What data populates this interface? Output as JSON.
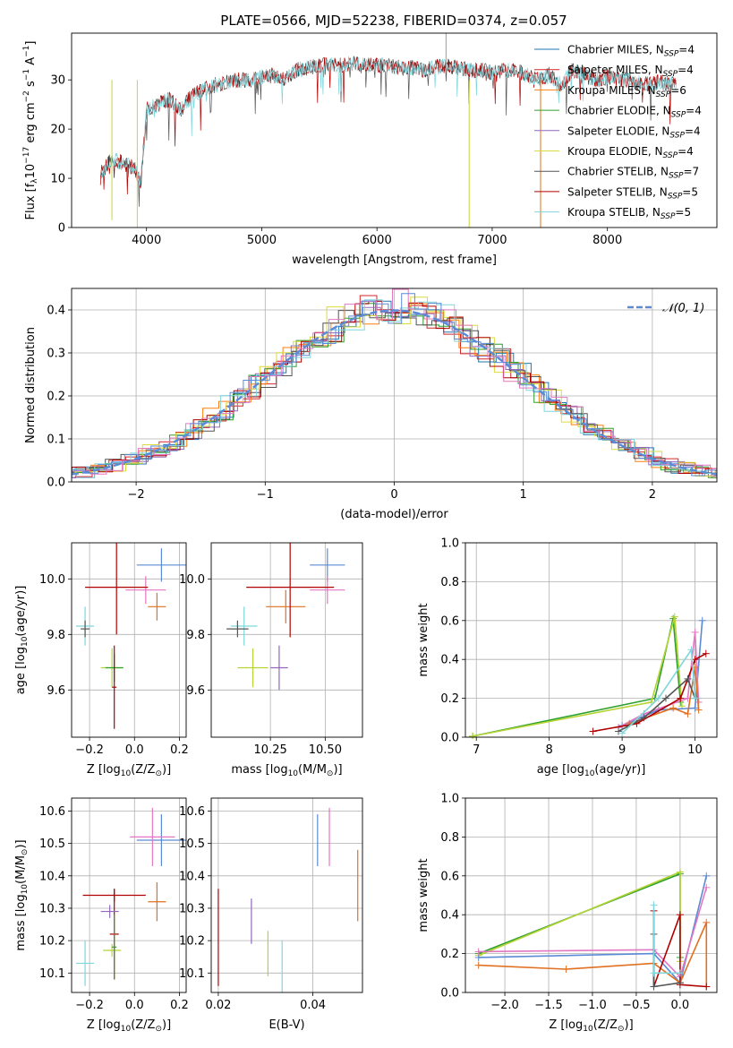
{
  "figure_title": "PLATE=0566, MJD=52238, FIBERID=0374, z=0.057",
  "legend": [
    {
      "label": "Chabrier MILES, N",
      "sub": "SSP",
      "suffix": "=4",
      "color": "#1f77b4"
    },
    {
      "label": "Salpeter MILES, N",
      "sub": "SSP",
      "suffix": "=4",
      "color": "#d62728"
    },
    {
      "label": "Kroupa MILES, N",
      "sub": "SSP",
      "suffix": "=6",
      "color": "#ff7f0e"
    },
    {
      "label": "Chabrier ELODIE, N",
      "sub": "SSP",
      "suffix": "=4",
      "color": "#2ca02c"
    },
    {
      "label": "Salpeter ELODIE, N",
      "sub": "SSP",
      "suffix": "=4",
      "color": "#9467bd"
    },
    {
      "label": "Kroupa ELODIE, N",
      "sub": "SSP",
      "suffix": "=4",
      "color": "#dbdb3d"
    },
    {
      "label": "Chabrier STELIB, N",
      "sub": "SSP",
      "suffix": "=7",
      "color": "#555555"
    },
    {
      "label": "Salpeter STELIB, N",
      "sub": "SSP",
      "suffix": "=5",
      "color": "#b00000"
    },
    {
      "label": "Kroupa STELIB, N",
      "sub": "SSP",
      "suffix": "=5",
      "color": "#7fd6dc"
    }
  ],
  "normal_legend": "𝒩(0, 1)",
  "chart_data": [
    {
      "id": "spectrum",
      "type": "line",
      "xlabel": "wavelength [Angstrom, rest frame]",
      "ylabel_parts": [
        "Flux [f",
        "λ",
        "10",
        "−17",
        " erg cm",
        "−2",
        " s",
        "−1",
        " A",
        "−1",
        "]"
      ],
      "xlim": [
        3350,
        8950
      ],
      "ylim": [
        0,
        39.5
      ],
      "xticks": [
        4000,
        5000,
        6000,
        7000,
        8000
      ],
      "yticks": [
        0,
        10,
        20,
        30
      ],
      "continuum": [
        [
          3600,
          11
        ],
        [
          3700,
          14
        ],
        [
          3800,
          13
        ],
        [
          3900,
          12
        ],
        [
          3950,
          9
        ],
        [
          4000,
          24
        ],
        [
          4100,
          25
        ],
        [
          4200,
          26
        ],
        [
          4300,
          24
        ],
        [
          4400,
          27
        ],
        [
          4500,
          28
        ],
        [
          4600,
          29
        ],
        [
          4700,
          29.5
        ],
        [
          4800,
          30
        ],
        [
          4900,
          30
        ],
        [
          5000,
          30.5
        ],
        [
          5100,
          31
        ],
        [
          5200,
          30
        ],
        [
          5300,
          32
        ],
        [
          5400,
          32.5
        ],
        [
          5500,
          33
        ],
        [
          5600,
          33
        ],
        [
          5700,
          33
        ],
        [
          5800,
          33.5
        ],
        [
          5900,
          33
        ],
        [
          6000,
          33
        ],
        [
          6100,
          33
        ],
        [
          6200,
          32.5
        ],
        [
          6300,
          32.5
        ],
        [
          6400,
          32
        ],
        [
          6500,
          32.5
        ],
        [
          6600,
          33
        ],
        [
          6700,
          32.5
        ],
        [
          6800,
          32
        ],
        [
          6900,
          32
        ],
        [
          7000,
          31.5
        ],
        [
          7100,
          32
        ],
        [
          7200,
          32
        ],
        [
          7300,
          31
        ],
        [
          7400,
          30
        ],
        [
          7500,
          31
        ],
        [
          7600,
          29
        ],
        [
          7700,
          32
        ],
        [
          7800,
          31
        ],
        [
          7900,
          30
        ],
        [
          8000,
          30.5
        ],
        [
          8100,
          30
        ],
        [
          8200,
          30
        ],
        [
          8300,
          29
        ],
        [
          8400,
          29.5
        ],
        [
          8500,
          29.5
        ],
        [
          8600,
          29
        ]
      ]
    },
    {
      "id": "residuals",
      "type": "line",
      "xlabel": "(data-model)/error",
      "ylabel": "Normed distribution",
      "xlim": [
        -2.5,
        2.5
      ],
      "ylim": [
        0,
        0.45
      ],
      "xticks": [
        -2,
        -1,
        0,
        1,
        2
      ],
      "xticklabels": [
        "−2",
        "−1",
        "0",
        "1",
        "2"
      ],
      "yticks": [
        0.0,
        0.1,
        0.2,
        0.3,
        0.4
      ],
      "yticklabels": [
        "0.0",
        "0.1",
        "0.2",
        "0.3",
        "0.4"
      ],
      "normal_curve": {
        "mu": 0,
        "sigma": 1,
        "color": "#5b8ad6"
      }
    },
    {
      "id": "age-vs-Z",
      "type": "scatter",
      "xlabel_parts": [
        "Z [log",
        "10",
        "(Z/Z",
        "⊙",
        ")]"
      ],
      "ylabel_parts": [
        "age  [log",
        "10",
        "(age/yr)]"
      ],
      "xlim": [
        -0.28,
        0.23
      ],
      "ylim": [
        9.43,
        10.13
      ],
      "xticks": [
        -0.2,
        0.0,
        0.2
      ],
      "xticklabels": [
        "−0.2",
        "0.0",
        "0.2"
      ],
      "yticks": [
        9.6,
        9.8,
        10.0
      ],
      "yticklabels": [
        "9.6",
        "9.8",
        "10.0"
      ],
      "points": [
        {
          "x": 0.12,
          "y": 10.05,
          "xerr": 0.11,
          "yerr": 0.06,
          "color": "#5b8ad6"
        },
        {
          "x": 0.05,
          "y": 9.96,
          "xerr": 0.09,
          "yerr": 0.05,
          "color": "#e377c2"
        },
        {
          "x": 0.1,
          "y": 9.9,
          "xerr": 0.04,
          "yerr": 0.05,
          "color": "#e07020"
        },
        {
          "x": -0.08,
          "y": 9.97,
          "xerr": 0.14,
          "yerr": 0.17,
          "color": "#b00000"
        },
        {
          "x": -0.22,
          "y": 9.83,
          "xerr": 0.04,
          "yerr": 0.07,
          "color": "#7fd6dc"
        },
        {
          "x": -0.22,
          "y": 9.82,
          "xerr": 0.02,
          "yerr": 0.03,
          "color": "#555555"
        },
        {
          "x": -0.1,
          "y": 9.68,
          "xerr": 0.05,
          "yerr": 0.07,
          "color": "#b5d334"
        },
        {
          "x": -0.09,
          "y": 9.68,
          "xerr": 0.04,
          "yerr": 0.05,
          "color": "#2ca02c"
        },
        {
          "x": -0.09,
          "y": 9.61,
          "xerr": 0.01,
          "yerr": 0.15,
          "color": "#b00000"
        }
      ]
    },
    {
      "id": "age-vs-mass",
      "type": "scatter",
      "xlabel_parts": [
        "mass [log",
        "10",
        "(M/M",
        "⊙",
        ")]"
      ],
      "ylabel": "",
      "xlim": [
        9.98,
        10.67
      ],
      "ylim": [
        9.43,
        10.13
      ],
      "xticks": [
        10.25,
        10.5
      ],
      "xticklabels": [
        "10.25",
        "10.50"
      ],
      "yticks": [
        9.6,
        9.8,
        10.0
      ],
      "yticklabels": [
        "9.6",
        "9.8",
        "10.0"
      ],
      "points": [
        {
          "x": 10.51,
          "y": 10.05,
          "xerr": 0.08,
          "yerr": 0.06,
          "color": "#5b8ad6"
        },
        {
          "x": 10.51,
          "y": 9.96,
          "xerr": 0.08,
          "yerr": 0.05,
          "color": "#e377c2"
        },
        {
          "x": 10.32,
          "y": 9.9,
          "xerr": 0.09,
          "yerr": 0.06,
          "color": "#e07020"
        },
        {
          "x": 10.34,
          "y": 9.97,
          "xerr": 0.2,
          "yerr": 0.18,
          "color": "#b00000"
        },
        {
          "x": 10.13,
          "y": 9.83,
          "xerr": 0.06,
          "yerr": 0.07,
          "color": "#7fd6dc"
        },
        {
          "x": 10.1,
          "y": 9.82,
          "xerr": 0.05,
          "yerr": 0.03,
          "color": "#555555"
        },
        {
          "x": 10.17,
          "y": 9.68,
          "xerr": 0.07,
          "yerr": 0.07,
          "color": "#b5d334"
        },
        {
          "x": 10.29,
          "y": 9.68,
          "xerr": 0.04,
          "yerr": 0.08,
          "color": "#9467bd"
        }
      ]
    },
    {
      "id": "massweight-vs-age",
      "type": "line",
      "xlabel_parts": [
        "age  [log",
        "10",
        "(age/yr)]"
      ],
      "ylabel": "mass weight",
      "xlim": [
        6.85,
        10.3
      ],
      "ylim": [
        0,
        1
      ],
      "xticks": [
        7,
        8,
        9,
        10
      ],
      "xticklabels": [
        "7",
        "8",
        "9",
        "10"
      ],
      "yticks": [
        0,
        0.2,
        0.4,
        0.6,
        0.8,
        1.0
      ],
      "yticklabels": [
        "0.0",
        "0.2",
        "0.4",
        "0.6",
        "0.8",
        "1.0"
      ],
      "series": [
        {
          "color": "#2ca02c",
          "points": [
            [
              6.95,
              0.005
            ],
            [
              9.45,
              0.2
            ],
            [
              9.7,
              0.61
            ],
            [
              9.8,
              0.18
            ]
          ]
        },
        {
          "color": "#b5d334",
          "points": [
            [
              6.95,
              0.005
            ],
            [
              9.4,
              0.18
            ],
            [
              9.72,
              0.62
            ],
            [
              9.82,
              0.16
            ]
          ]
        },
        {
          "color": "#5b8ad6",
          "points": [
            [
              9.0,
              0.06
            ],
            [
              9.5,
              0.14
            ],
            [
              10.0,
              0.15
            ],
            [
              10.1,
              0.6
            ]
          ]
        },
        {
          "color": "#e377c2",
          "points": [
            [
              8.95,
              0.05
            ],
            [
              9.3,
              0.12
            ],
            [
              9.9,
              0.2
            ],
            [
              10.0,
              0.54
            ],
            [
              10.05,
              0.18
            ]
          ]
        },
        {
          "color": "#e07020",
          "points": [
            [
              9.1,
              0.07
            ],
            [
              9.7,
              0.15
            ],
            [
              9.9,
              0.12
            ],
            [
              10.0,
              0.36
            ],
            [
              10.05,
              0.14
            ]
          ]
        },
        {
          "color": "#b00000",
          "points": [
            [
              8.6,
              0.03
            ],
            [
              9.2,
              0.07
            ],
            [
              9.8,
              0.2
            ],
            [
              10.0,
              0.4
            ],
            [
              10.15,
              0.43
            ]
          ]
        },
        {
          "color": "#555555",
          "points": [
            [
              8.95,
              0.03
            ],
            [
              9.3,
              0.1
            ],
            [
              9.6,
              0.2
            ],
            [
              9.9,
              0.3
            ],
            [
              10.0,
              0.2
            ]
          ]
        },
        {
          "color": "#7fd6dc",
          "points": [
            [
              9.0,
              0.02
            ],
            [
              9.5,
              0.2
            ],
            [
              9.95,
              0.45
            ],
            [
              10.0,
              0.2
            ]
          ]
        }
      ]
    },
    {
      "id": "mass-vs-Z",
      "type": "scatter",
      "xlabel_parts": [
        "Z [log",
        "10",
        "(Z/Z",
        "⊙",
        ")]"
      ],
      "ylabel_parts": [
        "mass [log",
        "10",
        "(M/M",
        "⊙",
        ")]"
      ],
      "xlim": [
        -0.28,
        0.23
      ],
      "ylim": [
        10.04,
        10.64
      ],
      "xticks": [
        -0.2,
        0.0,
        0.2
      ],
      "xticklabels": [
        "−0.2",
        "0.0",
        "0.2"
      ],
      "yticks": [
        10.1,
        10.2,
        10.3,
        10.4,
        10.5,
        10.6
      ],
      "yticklabels": [
        "10.1",
        "10.2",
        "10.3",
        "10.4",
        "10.5",
        "10.6"
      ],
      "points": [
        {
          "x": 0.12,
          "y": 10.51,
          "xerr": 0.11,
          "yerr": 0.08,
          "color": "#5b8ad6"
        },
        {
          "x": 0.08,
          "y": 10.52,
          "xerr": 0.1,
          "yerr": 0.09,
          "color": "#e377c2"
        },
        {
          "x": 0.1,
          "y": 10.32,
          "xerr": 0.04,
          "yerr": 0.06,
          "color": "#e07020"
        },
        {
          "x": -0.09,
          "y": 10.34,
          "xerr": 0.14,
          "yerr": 0.02,
          "color": "#b00000"
        },
        {
          "x": -0.09,
          "y": 10.22,
          "xerr": 0.02,
          "yerr": 0.14,
          "color": "#b00000"
        },
        {
          "x": -0.11,
          "y": 10.29,
          "xerr": 0.04,
          "yerr": 0.02,
          "color": "#9467bd"
        },
        {
          "x": -0.22,
          "y": 10.13,
          "xerr": 0.04,
          "yerr": 0.07,
          "color": "#7fd6dc"
        },
        {
          "x": -0.1,
          "y": 10.17,
          "xerr": 0.04,
          "yerr": 0.02,
          "color": "#b5d334"
        },
        {
          "x": -0.09,
          "y": 10.18,
          "xerr": 0.01,
          "yerr": 0.1,
          "color": "#2ca02c"
        }
      ]
    },
    {
      "id": "mass-vs-EBV",
      "type": "scatter",
      "xlabel": "E(B-V)",
      "ylabel": "",
      "xlim": [
        0.0185,
        0.0505
      ],
      "ylim": [
        10.04,
        10.64
      ],
      "xticks": [
        0.02,
        0.04
      ],
      "xticklabels": [
        "0.02",
        "0.04"
      ],
      "yticks": [
        10.1,
        10.2,
        10.3,
        10.4,
        10.5,
        10.6
      ],
      "yticklabels": [
        "10.1",
        "10.2",
        "10.3",
        "10.4",
        "10.5",
        "10.6"
      ],
      "points": [
        {
          "x": 0.041,
          "y": 10.51,
          "xerr": 0.0,
          "yerr": 0.08,
          "color": "#5b8ad6"
        },
        {
          "x": 0.0435,
          "y": 10.52,
          "xerr": 0.0,
          "yerr": 0.09,
          "color": "#e377c2"
        },
        {
          "x": 0.0495,
          "y": 10.37,
          "xerr": 0.0,
          "yerr": 0.11,
          "color": "#e07020"
        },
        {
          "x": 0.02,
          "y": 10.21,
          "xerr": 0.0,
          "yerr": 0.15,
          "color": "#b00000"
        },
        {
          "x": 0.027,
          "y": 10.26,
          "xerr": 0.0,
          "yerr": 0.07,
          "color": "#9467bd"
        },
        {
          "x": 0.0305,
          "y": 10.16,
          "xerr": 0.0,
          "yerr": 0.07,
          "color": "#b5d334"
        },
        {
          "x": 0.0335,
          "y": 10.12,
          "xerr": 0.0,
          "yerr": 0.08,
          "color": "#7fd6dc"
        }
      ]
    },
    {
      "id": "massweight-vs-Z",
      "type": "line",
      "xlabel_parts": [
        "Z [log",
        "10",
        "(Z/Z",
        "⊙",
        ")]"
      ],
      "ylabel": "mass weight",
      "xlim": [
        -2.45,
        0.42
      ],
      "ylim": [
        0,
        1
      ],
      "xticks": [
        -2.0,
        -1.5,
        -1.0,
        -0.5,
        0.0
      ],
      "xticklabels": [
        "−2.0",
        "−1.5",
        "−1.0",
        "−0.5",
        "0.0"
      ],
      "yticks": [
        0,
        0.2,
        0.4,
        0.6,
        0.8,
        1.0
      ],
      "yticklabels": [
        "0.0",
        "0.2",
        "0.4",
        "0.6",
        "0.8",
        "1.0"
      ],
      "series": [
        {
          "color": "#2ca02c",
          "points": [
            [
              -2.3,
              0.2
            ],
            [
              0.0,
              0.61
            ],
            [
              0.0,
              0.18
            ]
          ]
        },
        {
          "color": "#b5d334",
          "points": [
            [
              -2.3,
              0.19
            ],
            [
              0.0,
              0.62
            ],
            [
              0.0,
              0.16
            ]
          ]
        },
        {
          "color": "#5b8ad6",
          "points": [
            [
              -2.3,
              0.18
            ],
            [
              -0.3,
              0.2
            ],
            [
              0.0,
              0.05
            ],
            [
              0.3,
              0.6
            ]
          ]
        },
        {
          "color": "#e377c2",
          "points": [
            [
              -2.3,
              0.21
            ],
            [
              -0.3,
              0.22
            ],
            [
              0.0,
              0.08
            ],
            [
              0.3,
              0.54
            ]
          ]
        },
        {
          "color": "#e07020",
          "points": [
            [
              -2.3,
              0.14
            ],
            [
              -1.3,
              0.12
            ],
            [
              -0.3,
              0.15
            ],
            [
              0.0,
              0.05
            ],
            [
              0.3,
              0.36
            ],
            [
              0.3,
              0.03
            ]
          ]
        },
        {
          "color": "#b00000",
          "points": [
            [
              -0.3,
              0.42
            ],
            [
              -0.3,
              0.03
            ],
            [
              0.0,
              0.4
            ],
            [
              0.0,
              0.04
            ],
            [
              0.3,
              0.03
            ]
          ]
        },
        {
          "color": "#555555",
          "points": [
            [
              -0.3,
              0.3
            ],
            [
              -0.3,
              0.03
            ],
            [
              0.0,
              0.05
            ]
          ]
        },
        {
          "color": "#7fd6dc",
          "points": [
            [
              -0.3,
              0.45
            ],
            [
              -0.3,
              0.1
            ],
            [
              0.0,
              0.1
            ]
          ]
        }
      ]
    }
  ]
}
